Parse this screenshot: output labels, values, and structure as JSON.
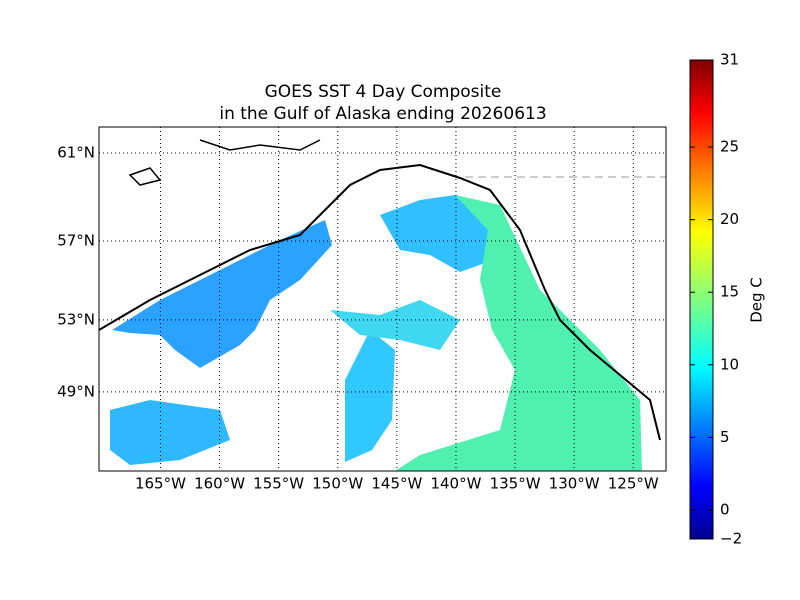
{
  "title": [
    "GOES SST 4 Day Composite",
    "in the Gulf of Alaska ending 20260613"
  ],
  "lat_ticks": [
    {
      "value": 61,
      "label": "61°N"
    },
    {
      "value": 57,
      "label": "57°N"
    },
    {
      "value": 53,
      "label": "53°N"
    },
    {
      "value": 49,
      "label": "49°N"
    }
  ],
  "lon_ticks": [
    {
      "value": -165,
      "label": "165°W"
    },
    {
      "value": -160,
      "label": "160°W"
    },
    {
      "value": -155,
      "label": "155°W"
    },
    {
      "value": -150,
      "label": "150°W"
    },
    {
      "value": -145,
      "label": "145°W"
    },
    {
      "value": -140,
      "label": "140°W"
    },
    {
      "value": -135,
      "label": "135°W"
    },
    {
      "value": -130,
      "label": "130°W"
    },
    {
      "value": -125,
      "label": "125°W"
    }
  ],
  "colorbar": {
    "label": "Deg C",
    "range": [
      {
        "value": -2,
        "label": "−2"
      },
      31
    ],
    "ticks": [
      {
        "value": -2,
        "label": "−2"
      },
      0,
      5,
      10,
      15,
      20,
      25,
      31
    ]
  }
}
